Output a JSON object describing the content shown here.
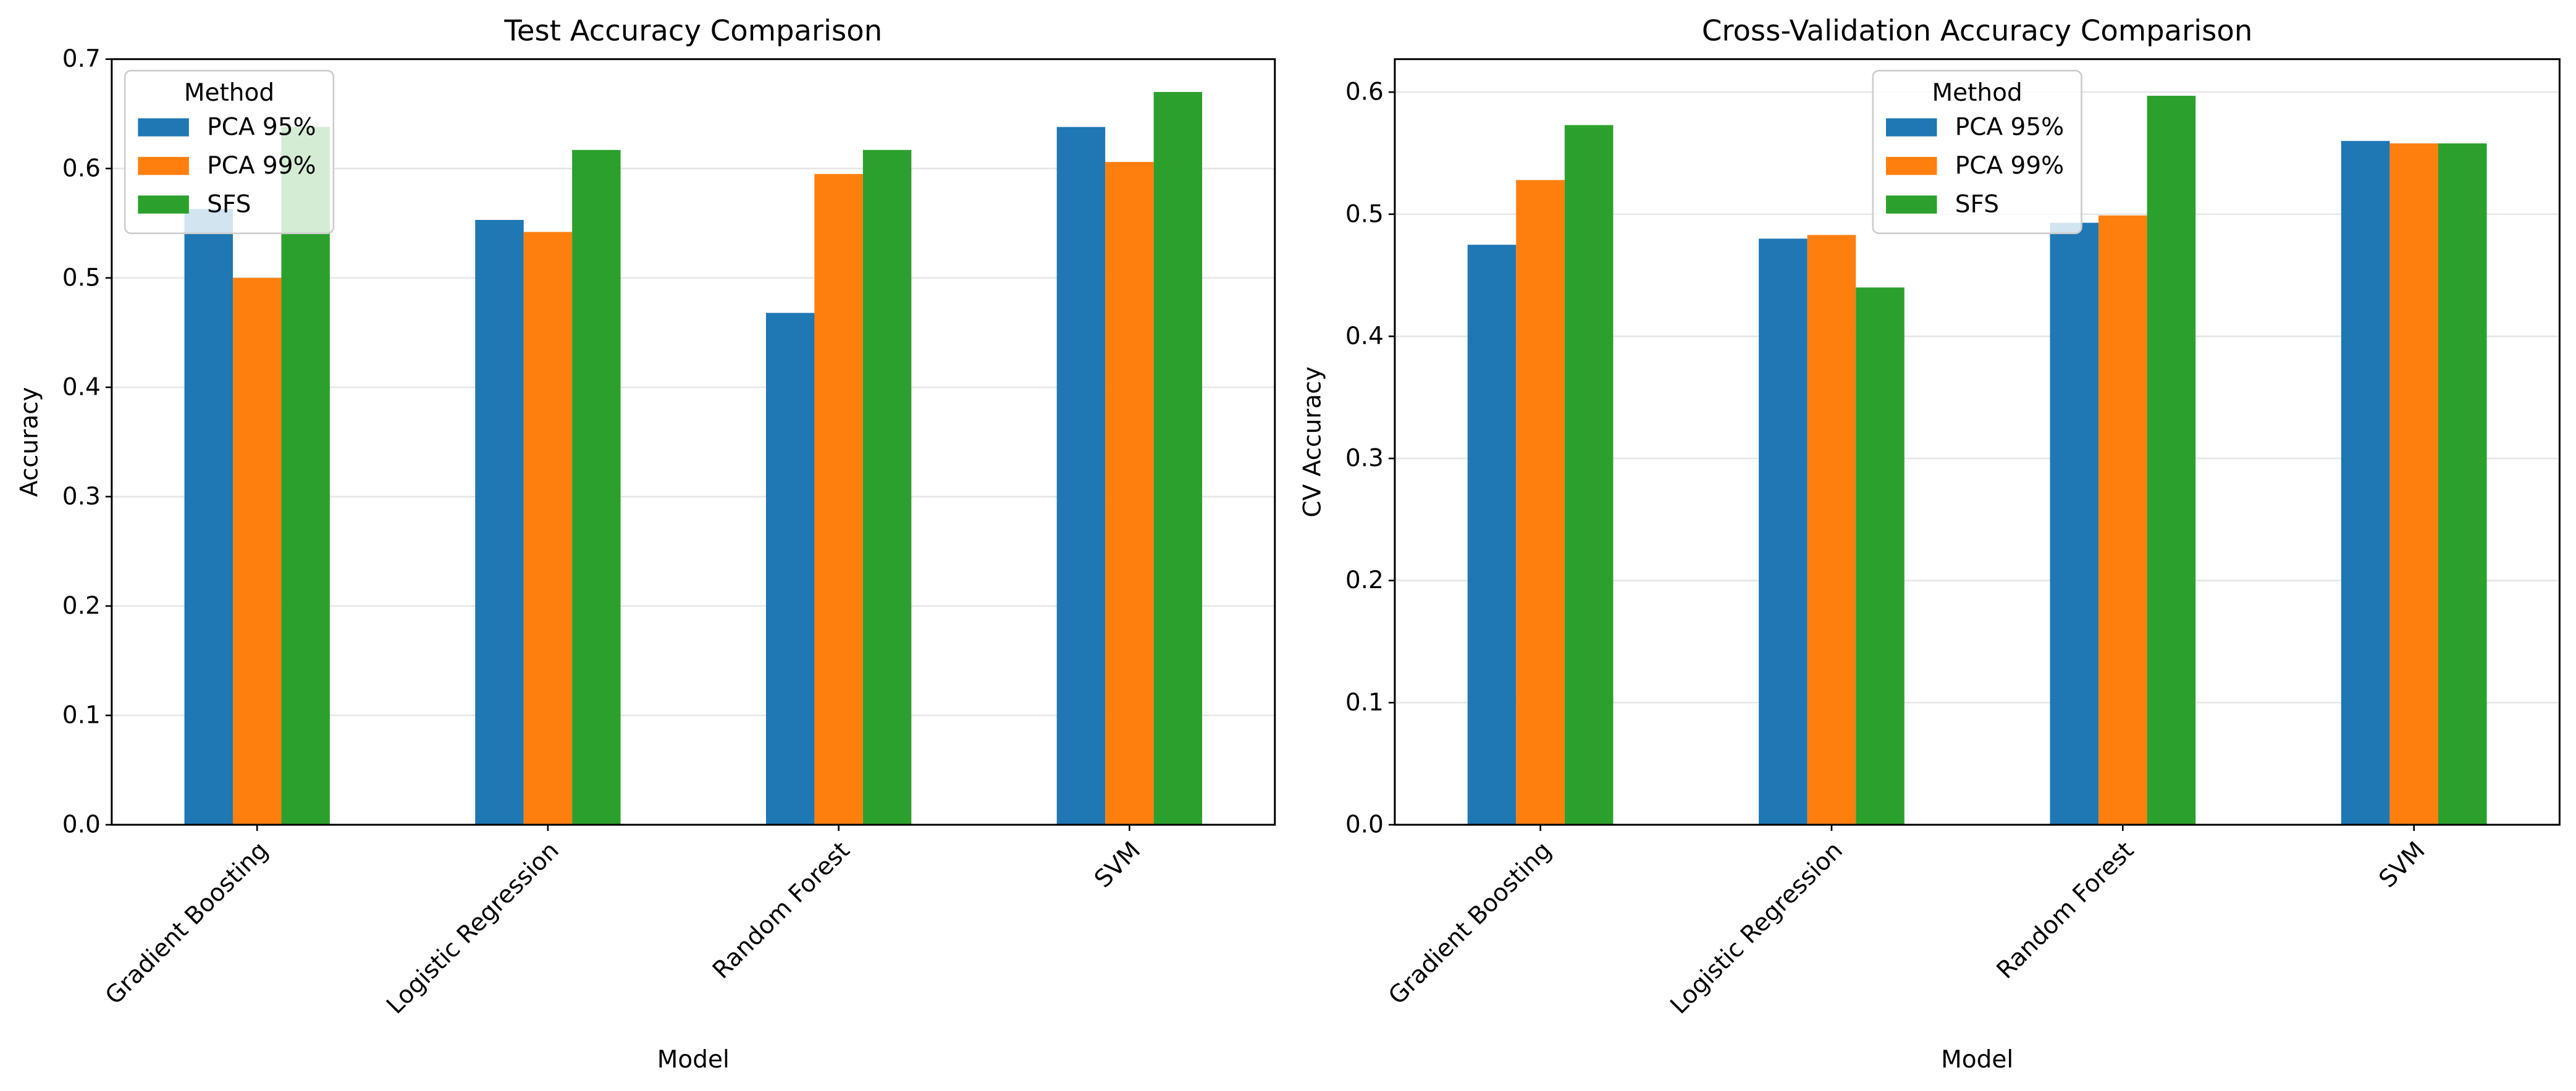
{
  "colors": {
    "series": [
      "#1f77b4",
      "#ff7f0e",
      "#2ca02c"
    ],
    "grid": "#e6e6e6",
    "axis": "#000000",
    "legend_border": "#cccccc"
  },
  "chart_data": [
    {
      "type": "bar",
      "title": "Test Accuracy Comparison",
      "xlabel": "Model",
      "ylabel": "Accuracy",
      "categories": [
        "Gradient Boosting",
        "Logistic Regression",
        "Random Forest",
        "SVM"
      ],
      "series": [
        {
          "name": "PCA 95%",
          "values": [
            0.563,
            0.553,
            0.468,
            0.638
          ]
        },
        {
          "name": "PCA 99%",
          "values": [
            0.5,
            0.542,
            0.595,
            0.606
          ]
        },
        {
          "name": "SFS",
          "values": [
            0.638,
            0.617,
            0.617,
            0.67
          ]
        }
      ],
      "ylim": [
        0,
        0.7
      ],
      "yticks": [
        0.0,
        0.1,
        0.2,
        0.3,
        0.4,
        0.5,
        0.6,
        0.7
      ],
      "ytick_labels": [
        "0.0",
        "0.1",
        "0.2",
        "0.3",
        "0.4",
        "0.5",
        "0.6",
        "0.7"
      ],
      "grid": "y",
      "legend": {
        "title": "Method",
        "placement": "top-left"
      }
    },
    {
      "type": "bar",
      "title": "Cross-Validation Accuracy Comparison",
      "xlabel": "Model",
      "ylabel": "CV Accuracy",
      "categories": [
        "Gradient Boosting",
        "Logistic Regression",
        "Random Forest",
        "SVM"
      ],
      "series": [
        {
          "name": "PCA 95%",
          "values": [
            0.475,
            0.48,
            0.493,
            0.56
          ]
        },
        {
          "name": "PCA 99%",
          "values": [
            0.528,
            0.483,
            0.499,
            0.558
          ]
        },
        {
          "name": "SFS",
          "values": [
            0.573,
            0.44,
            0.597,
            0.558
          ]
        }
      ],
      "ylim": [
        0,
        0.627
      ],
      "yticks": [
        0.0,
        0.1,
        0.2,
        0.3,
        0.4,
        0.5,
        0.6
      ],
      "ytick_labels": [
        "0.0",
        "0.1",
        "0.2",
        "0.3",
        "0.4",
        "0.5",
        "0.6"
      ],
      "grid": "y",
      "legend": {
        "title": "Method",
        "placement": "top-center"
      }
    }
  ]
}
